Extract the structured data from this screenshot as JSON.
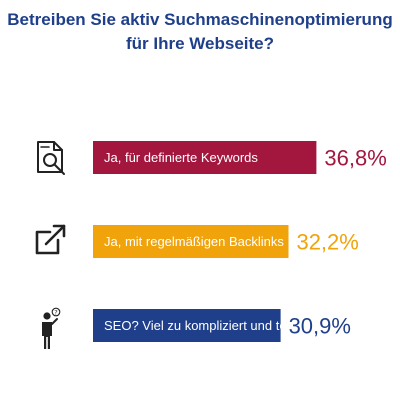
{
  "title_lines": [
    "Betreiben Sie aktiv Suchmaschinenoptimierung",
    "für Ihre Webseite?"
  ],
  "chart_data": {
    "type": "bar",
    "orientation": "horizontal",
    "categories": [
      "Ja, für definierte Keywords",
      "Ja, mit regelmäßigen Backlinks",
      "SEO? Viel zu kompliziert und teuer"
    ],
    "values": [
      36.8,
      32.2,
      30.9
    ],
    "value_labels": [
      "36,8%",
      "32,2%",
      "30,9%"
    ],
    "colors": [
      "#a3173f",
      "#f0a30a",
      "#1f3f8a"
    ],
    "icons": [
      "document-search-icon",
      "external-link-icon",
      "confused-person-icon"
    ],
    "grid": false,
    "legend": "none"
  }
}
